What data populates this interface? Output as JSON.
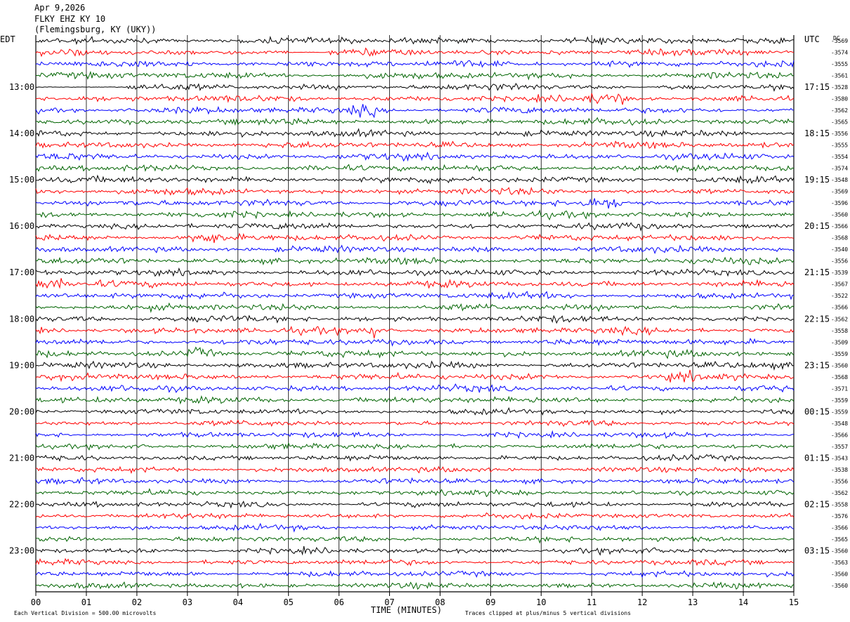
{
  "header": {
    "date": "Apr 9,2026",
    "station": "FLKY EHZ KY 10",
    "location": "(Flemingsburg, KY (UKY))"
  },
  "footer": {
    "scale_note": "Each Vertical Division =  500.00 microvolts",
    "clip_note": "Traces clipped at plus/minus 5 vertical divisions"
  },
  "colors": {
    "trace_cycle": [
      "#000000",
      "#ff0000",
      "#0000ff",
      "#006400"
    ],
    "grid": "#000000"
  },
  "chart_data": {
    "type": "line",
    "subtype": "seismogram-helicorder",
    "xlabel": "TIME (MINUTES)",
    "xlim": [
      0,
      15
    ],
    "xticks": [
      "00",
      "01",
      "02",
      "03",
      "04",
      "05",
      "06",
      "07",
      "08",
      "09",
      "10",
      "11",
      "12",
      "13",
      "14",
      "15"
    ],
    "left_axis_label": "EDT",
    "right_axis_label": "UTC",
    "right_top_label": "DC",
    "hour_labels_local": [
      "13:00",
      "14:00",
      "15:00",
      "16:00",
      "17:00",
      "18:00",
      "19:00",
      "20:00",
      "21:00",
      "22:00",
      "23:00"
    ],
    "hour_labels_utc": [
      "17:15",
      "18:15",
      "19:15",
      "20:15",
      "21:15",
      "22:15",
      "23:15",
      "00:15",
      "01:15",
      "02:15",
      "03:15"
    ],
    "traces_per_hour": 4,
    "trace_colors": [
      "black",
      "red",
      "blue",
      "green"
    ],
    "dc_offsets": [
      "-3569",
      "-3574",
      "-3555",
      "-3561",
      "-3528",
      "-3580",
      "-3562",
      "-3565",
      "-3556",
      "-3555",
      "-3554",
      "-3574",
      "-3548",
      "-3569",
      "-3596",
      "-3560",
      "-3566",
      "-3568",
      "-3540",
      "-3556",
      "-3539",
      "-3567",
      "-3522",
      "-3566",
      "-3562",
      "-3558",
      "-3509",
      "-3559",
      "-3560",
      "-3568",
      "-3571",
      "-3559",
      "-3559",
      "-3548",
      "-3566",
      "-3557",
      "-3543",
      "-3538",
      "-3556",
      "-3562",
      "-3558",
      "-3576",
      "-3566",
      "-3565",
      "-3560",
      "-3563",
      "-3560",
      "-3560"
    ],
    "events": [
      {
        "trace": 4,
        "x_min": 0.0,
        "x_max": 1.8,
        "type": "quiet"
      },
      {
        "trace": 1,
        "x_min": 5.0,
        "x_max": 5.8,
        "type": "quiet"
      },
      {
        "trace": 4,
        "x_min": 11.8,
        "x_max": 12.3,
        "type": "quiet"
      },
      {
        "trace": 5,
        "x_min": 10.9,
        "x_max": 11.7,
        "type": "burst"
      },
      {
        "trace": 6,
        "x_min": 6.2,
        "x_max": 6.8,
        "type": "burst"
      },
      {
        "trace": 14,
        "x_min": 10.8,
        "x_max": 11.6,
        "type": "burst"
      },
      {
        "trace": 17,
        "x_min": 3.1,
        "x_max": 3.8,
        "type": "burst"
      },
      {
        "trace": 21,
        "x_min": 0.0,
        "x_max": 0.5,
        "type": "burst"
      },
      {
        "trace": 25,
        "x_min": 6.5,
        "x_max": 6.75,
        "type": "spike"
      },
      {
        "trace": 27,
        "x_min": 3.0,
        "x_max": 3.5,
        "type": "burst"
      },
      {
        "trace": 29,
        "x_min": 12.5,
        "x_max": 13.0,
        "type": "burst"
      }
    ]
  }
}
